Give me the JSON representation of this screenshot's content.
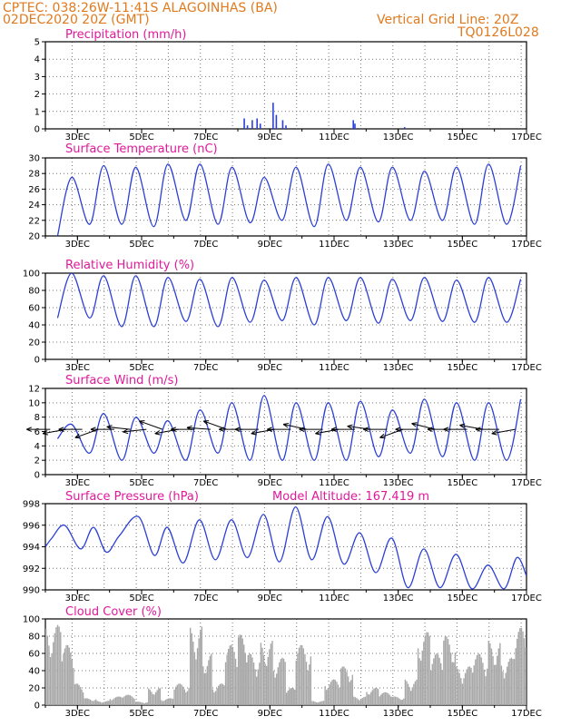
{
  "header": {
    "line1_left": "CPTEC:   038:26W-11:41S   ALAGOINHAS (BA)",
    "line2_left": "02DEC2020 20Z (GMT)",
    "line1_right": "Vertical Grid Line: 20Z",
    "line2_right": "TQ0126L028"
  },
  "colors": {
    "line": "#2b3fd6",
    "title": "#e0199a",
    "header": "#e07a1f",
    "cloud": "#a8a8a8",
    "grid": "#777777"
  },
  "chart_data": [
    {
      "type": "bar",
      "title": "Precipitation (mm/h)",
      "x_ticks": [
        "3DEC",
        "5DEC",
        "7DEC",
        "9DEC",
        "11DEC",
        "13DEC",
        "15DEC",
        "17DEC"
      ],
      "ylim": [
        0,
        5
      ],
      "y_ticks": [
        0,
        1,
        2,
        3,
        4,
        5
      ],
      "x": [
        8.2,
        8.3,
        8.45,
        8.6,
        8.7,
        9.1,
        9.2,
        9.4,
        9.5,
        11.6,
        11.65,
        13.2
      ],
      "values": [
        0.6,
        0.2,
        0.5,
        0.6,
        0.3,
        1.5,
        0.8,
        0.5,
        0.2,
        0.5,
        0.3,
        0.1
      ],
      "grid": true
    },
    {
      "type": "line",
      "title": "Surface Temperature (nC)",
      "x_ticks": [
        "3DEC",
        "5DEC",
        "7DEC",
        "9DEC",
        "11DEC",
        "13DEC",
        "15DEC",
        "17DEC"
      ],
      "ylim": [
        20,
        30
      ],
      "y_ticks": [
        20,
        22,
        24,
        26,
        28,
        30
      ],
      "max": [
        27.5,
        29,
        28.8,
        29.2,
        29.2,
        28.8,
        27.5,
        28.8,
        29.2,
        28.8,
        28.8,
        28.3,
        28.8,
        29.2,
        29,
        28.8,
        29.5
      ],
      "min": [
        20,
        21.5,
        21.5,
        21.2,
        22,
        21.5,
        21.7,
        22,
        21.2,
        22,
        21.8,
        22,
        22,
        21.5,
        21.5,
        22
      ],
      "grid": true
    },
    {
      "type": "line",
      "title": "Relative Humidity (%)",
      "x_ticks": [
        "3DEC",
        "5DEC",
        "7DEC",
        "9DEC",
        "11DEC",
        "13DEC",
        "15DEC",
        "17DEC"
      ],
      "ylim": [
        0,
        100
      ],
      "y_ticks": [
        0,
        20,
        40,
        60,
        80,
        100
      ],
      "max": [
        100,
        97,
        97,
        95,
        93,
        95,
        92,
        95,
        95,
        95,
        93,
        95,
        92,
        95,
        93,
        93
      ],
      "min": [
        48,
        48,
        38,
        38,
        44,
        38,
        43,
        45,
        40,
        45,
        42,
        45,
        44,
        43,
        43
      ],
      "grid": true
    },
    {
      "type": "line",
      "title": "Surface Wind (m/s)",
      "x_ticks": [
        "3DEC",
        "5DEC",
        "7DEC",
        "9DEC",
        "11DEC",
        "13DEC",
        "15DEC",
        "17DEC"
      ],
      "ylim": [
        0,
        12
      ],
      "y_ticks": [
        0,
        2,
        4,
        6,
        8,
        10,
        12
      ],
      "max": [
        7,
        8.5,
        8,
        7.5,
        9,
        10,
        11,
        10,
        10,
        10.2,
        9,
        10.5,
        10,
        10,
        10.5
      ],
      "min": [
        5,
        3,
        2,
        3,
        2,
        3,
        2,
        2,
        2,
        2,
        2.5,
        3,
        2.5,
        2,
        2
      ],
      "wind_barbs_u_v": [
        [
          -5,
          0
        ],
        [
          -5,
          -0.5
        ],
        [
          -5,
          0
        ],
        [
          -5,
          -1
        ],
        [
          -4,
          0
        ],
        [
          -5,
          0.3
        ],
        [
          -5,
          -0.3
        ],
        [
          -5,
          1
        ],
        [
          -5,
          -0.5
        ],
        [
          -5,
          0
        ],
        [
          -5,
          0.2
        ],
        [
          -5,
          1
        ],
        [
          -5,
          0
        ],
        [
          -4,
          0
        ],
        [
          -5,
          -0.5
        ],
        [
          -5,
          0
        ],
        [
          -5,
          0.6
        ],
        [
          -5,
          0
        ],
        [
          -5,
          -0.5
        ],
        [
          -5,
          0
        ],
        [
          -4,
          0.3
        ],
        [
          -5,
          0
        ],
        [
          -5,
          -1
        ],
        [
          -5,
          0
        ],
        [
          -5,
          0.7
        ],
        [
          -5,
          0
        ],
        [
          -5,
          0
        ],
        [
          -5,
          0.5
        ],
        [
          -5,
          0
        ],
        [
          -5,
          -0.5
        ],
        [
          -5,
          0
        ],
        [
          -4,
          0
        ],
        [
          -5,
          0
        ]
      ],
      "grid": true
    },
    {
      "type": "line",
      "title": "Surface Pressure (hPa)",
      "annotation": "Model Altitude: 167.419 m",
      "x_ticks": [
        "3DEC",
        "5DEC",
        "7DEC",
        "9DEC",
        "11DEC",
        "13DEC",
        "15DEC",
        "17DEC"
      ],
      "ylim": [
        990,
        998
      ],
      "y_ticks": [
        990,
        992,
        994,
        996,
        998
      ],
      "points": [
        [
          2,
          994
        ],
        [
          2.2,
          994.8
        ],
        [
          2.6,
          996
        ],
        [
          3.1,
          993.8
        ],
        [
          3.5,
          995.8
        ],
        [
          3.9,
          993.5
        ],
        [
          4.3,
          995
        ],
        [
          4.9,
          996.8
        ],
        [
          5.4,
          993.2
        ],
        [
          5.8,
          995.8
        ],
        [
          6.3,
          992.5
        ],
        [
          6.8,
          996.5
        ],
        [
          7.3,
          992.8
        ],
        [
          7.8,
          996.5
        ],
        [
          8.3,
          993
        ],
        [
          8.8,
          997
        ],
        [
          9.3,
          992.6
        ],
        [
          9.8,
          997.7
        ],
        [
          10.3,
          992.8
        ],
        [
          10.8,
          996.8
        ],
        [
          11.3,
          992.4
        ],
        [
          11.8,
          995.3
        ],
        [
          12.3,
          991.6
        ],
        [
          12.8,
          994.8
        ],
        [
          13.3,
          990.2
        ],
        [
          13.8,
          993.8
        ],
        [
          14.3,
          990.2
        ],
        [
          14.8,
          993.3
        ],
        [
          15.3,
          990.1
        ],
        [
          15.8,
          992.3
        ],
        [
          16.3,
          990.1
        ],
        [
          16.7,
          993
        ],
        [
          17,
          991.3
        ]
      ],
      "grid": true
    },
    {
      "type": "bar",
      "title": "Cloud Cover (%)",
      "x_ticks": [
        "3DEC",
        "5DEC",
        "7DEC",
        "9DEC",
        "11DEC",
        "13DEC",
        "15DEC",
        "17DEC"
      ],
      "ylim": [
        0,
        100
      ],
      "y_ticks": [
        0,
        20,
        40,
        60,
        80,
        100
      ],
      "segments": [
        [
          2.0,
          2.5,
          93
        ],
        [
          2.5,
          2.9,
          70
        ],
        [
          2.9,
          3.2,
          25
        ],
        [
          3.2,
          3.6,
          8
        ],
        [
          3.6,
          4.0,
          5
        ],
        [
          4.0,
          4.4,
          10
        ],
        [
          4.4,
          4.8,
          12
        ],
        [
          4.8,
          5.2,
          4
        ],
        [
          5.2,
          5.6,
          20
        ],
        [
          5.6,
          6.0,
          8
        ],
        [
          6.0,
          6.5,
          25
        ],
        [
          6.5,
          6.9,
          92
        ],
        [
          6.9,
          7.2,
          60
        ],
        [
          7.2,
          7.6,
          25
        ],
        [
          7.6,
          8.0,
          70
        ],
        [
          8.0,
          8.3,
          82
        ],
        [
          8.3,
          8.7,
          60
        ],
        [
          8.7,
          9.1,
          75
        ],
        [
          9.1,
          9.5,
          55
        ],
        [
          9.5,
          9.8,
          20
        ],
        [
          9.8,
          10.3,
          70
        ],
        [
          10.3,
          10.7,
          5
        ],
        [
          10.7,
          11.2,
          30
        ],
        [
          11.2,
          11.6,
          45
        ],
        [
          11.6,
          12.0,
          10
        ],
        [
          12.0,
          12.4,
          20
        ],
        [
          12.4,
          12.8,
          15
        ],
        [
          12.8,
          13.2,
          10
        ],
        [
          13.2,
          13.6,
          30
        ],
        [
          13.6,
          14.0,
          85
        ],
        [
          14.0,
          14.4,
          60
        ],
        [
          14.4,
          14.8,
          80
        ],
        [
          14.8,
          15.3,
          45
        ],
        [
          15.3,
          15.8,
          60
        ],
        [
          15.8,
          16.2,
          75
        ],
        [
          16.2,
          16.6,
          55
        ],
        [
          16.6,
          17.0,
          90
        ]
      ],
      "grid": true
    }
  ]
}
